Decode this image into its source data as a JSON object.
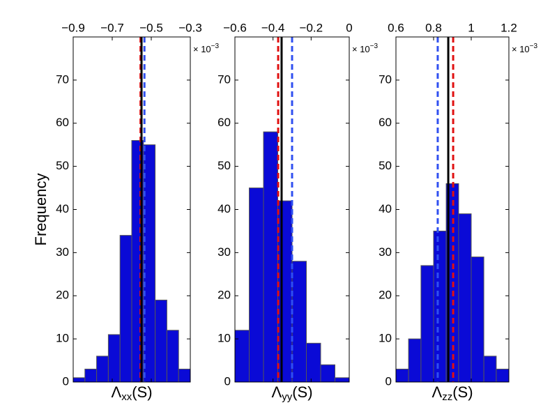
{
  "chart_data": [
    {
      "type": "histogram",
      "ylabel": "Frequency",
      "xlabel": "Λ",
      "xlabel_sub": "xx",
      "xlabel_suffix": "(S)",
      "x_multiplier": "× 10",
      "x_exponent": "−3",
      "bins": [
        -0.9,
        -0.84,
        -0.78,
        -0.72,
        -0.66,
        -0.6,
        -0.54,
        -0.48,
        -0.42,
        -0.36,
        -0.3
      ],
      "values": [
        1,
        3,
        6,
        11,
        34,
        56,
        55,
        19,
        12,
        3
      ],
      "color": "#0a0ad6",
      "edgecolor": "#555555",
      "xlim": [
        -0.9,
        -0.3
      ],
      "xticks": [
        -0.9,
        -0.7,
        -0.5,
        -0.3
      ],
      "ylim": [
        0,
        80
      ],
      "yticks": [
        0,
        10,
        20,
        30,
        40,
        50,
        60,
        70
      ],
      "lines": [
        {
          "value": -0.555,
          "color": "#e01010",
          "style": "dashed"
        },
        {
          "value": -0.55,
          "color": "#000000",
          "style": "solid"
        },
        {
          "value": -0.535,
          "color": "#3050f0",
          "style": "dashed"
        }
      ]
    },
    {
      "type": "histogram",
      "xlabel": "Λ",
      "xlabel_sub": "yy",
      "xlabel_suffix": "(S)",
      "x_multiplier": "× 10",
      "x_exponent": "−3",
      "bins": [
        -0.6,
        -0.525,
        -0.45,
        -0.375,
        -0.3,
        -0.225,
        -0.15,
        -0.075,
        0
      ],
      "values": [
        12,
        45,
        58,
        42,
        28,
        9,
        4,
        1
      ],
      "color": "#0a0ad6",
      "edgecolor": "#555555",
      "xlim": [
        -0.6,
        0
      ],
      "xticks": [
        -0.6,
        -0.4,
        -0.2,
        0
      ],
      "ylim": [
        0,
        80
      ],
      "yticks": [
        0,
        10,
        20,
        30,
        40,
        50,
        60,
        70
      ],
      "lines": [
        {
          "value": -0.373,
          "color": "#e01010",
          "style": "dashed"
        },
        {
          "value": -0.355,
          "color": "#000000",
          "style": "solid"
        },
        {
          "value": -0.3,
          "color": "#3050f0",
          "style": "dashed"
        }
      ]
    },
    {
      "type": "histogram",
      "xlabel": "Λ",
      "xlabel_sub": "zz",
      "xlabel_suffix": "(S)",
      "x_multiplier": "× 10",
      "x_exponent": "−3",
      "bins": [
        0.6,
        0.667,
        0.733,
        0.8,
        0.867,
        0.933,
        1.0,
        1.067,
        1.133,
        1.2
      ],
      "values": [
        3,
        10,
        27,
        35,
        46,
        39,
        29,
        6,
        3
      ],
      "color": "#0a0ad6",
      "edgecolor": "#555555",
      "xlim": [
        0.6,
        1.2
      ],
      "xticks": [
        0.6,
        0.8,
        1,
        1.2
      ],
      "ylim": [
        0,
        80
      ],
      "yticks": [
        0,
        10,
        20,
        30,
        40,
        50,
        60,
        70
      ],
      "lines": [
        {
          "value": 0.822,
          "color": "#3050f0",
          "style": "dashed"
        },
        {
          "value": 0.878,
          "color": "#000000",
          "style": "solid"
        },
        {
          "value": 0.904,
          "color": "#e01010",
          "style": "dashed"
        }
      ]
    }
  ]
}
